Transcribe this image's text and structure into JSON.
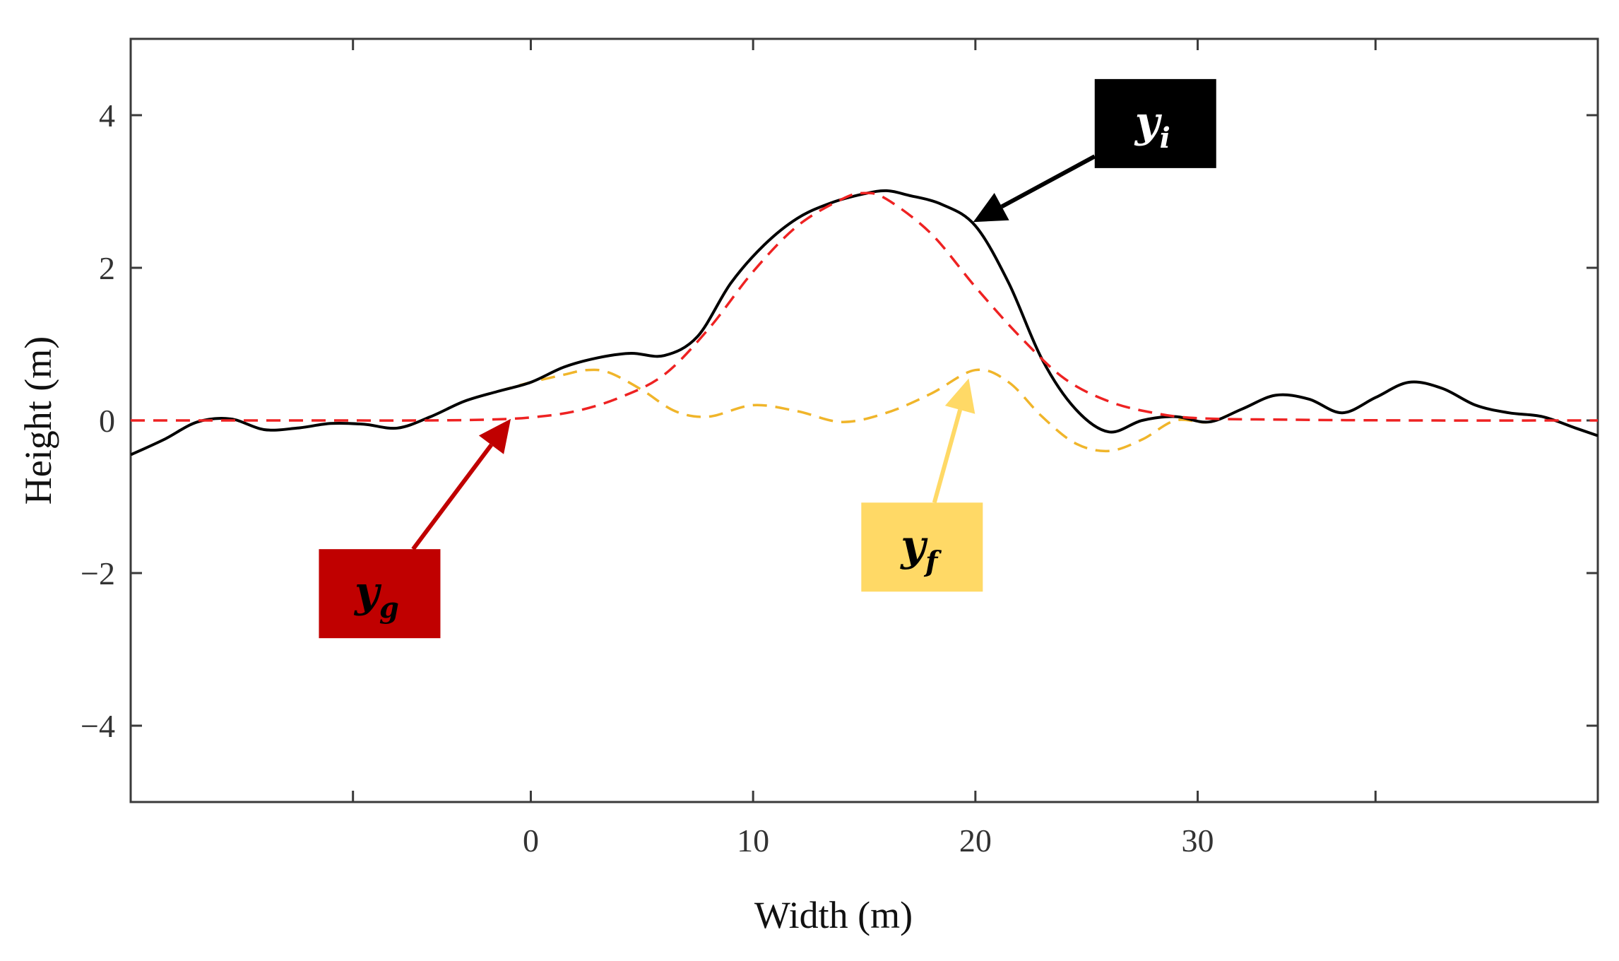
{
  "chart_data": {
    "type": "line",
    "title": "",
    "xlabel": "Width (m)",
    "ylabel": "Height (m)",
    "xlim": [
      -18,
      48
    ],
    "ylim": [
      -5,
      5
    ],
    "xticks": [
      -8,
      0,
      10,
      20,
      30,
      38
    ],
    "xtick_labels": [
      "",
      "0",
      "10",
      "20",
      "30",
      ""
    ],
    "yticks": [
      -4,
      -2,
      0,
      2,
      4
    ],
    "ytick_labels": [
      "−4",
      "−2",
      "0",
      "2",
      "4"
    ],
    "grid": false,
    "series": [
      {
        "name": "y_i",
        "label_main": "y",
        "label_sub": "i",
        "style": "solid",
        "color": "#000000",
        "x": [
          -18,
          -16.5,
          -15,
          -13.5,
          -12,
          -10.5,
          -9,
          -7.5,
          -6,
          -4.5,
          -3,
          -1.5,
          0,
          1.5,
          3,
          4.5,
          6,
          7.5,
          9,
          10.5,
          12,
          13.5,
          15,
          16,
          17,
          18.5,
          20,
          21.5,
          23,
          24.5,
          26,
          27.5,
          29,
          30.5,
          32,
          33.5,
          35,
          36.5,
          38,
          39.5,
          41,
          42.5,
          44,
          45.5,
          47,
          48
        ],
        "y": [
          -0.45,
          -0.25,
          -0.02,
          0.02,
          -0.12,
          -0.1,
          -0.04,
          -0.05,
          -0.1,
          0.05,
          0.25,
          0.38,
          0.5,
          0.7,
          0.82,
          0.88,
          0.85,
          1.1,
          1.8,
          2.3,
          2.65,
          2.85,
          2.97,
          3.01,
          2.95,
          2.83,
          2.55,
          1.8,
          0.8,
          0.15,
          -0.15,
          0.0,
          0.05,
          -0.02,
          0.15,
          0.33,
          0.28,
          0.1,
          0.3,
          0.5,
          0.42,
          0.2,
          0.1,
          0.05,
          -0.1,
          -0.2
        ]
      },
      {
        "name": "y_g",
        "label_main": "y",
        "label_sub": "g",
        "style": "dashed",
        "color": "#ee2222",
        "x": [
          -18,
          -10,
          -5,
          -2,
          0,
          2,
          4,
          6,
          8,
          10,
          12,
          14,
          15,
          16,
          18,
          20,
          22,
          24,
          26,
          28,
          30,
          34,
          40,
          48
        ],
        "y": [
          0,
          0,
          0,
          0.01,
          0.04,
          0.12,
          0.3,
          0.6,
          1.2,
          1.95,
          2.55,
          2.9,
          2.98,
          2.9,
          2.45,
          1.75,
          1.1,
          0.55,
          0.25,
          0.1,
          0.03,
          0.01,
          0,
          0
        ]
      },
      {
        "name": "y_f",
        "label_main": "y",
        "label_sub": "f",
        "style": "dashed",
        "color": "#f0b52a",
        "x": [
          -18,
          -16.5,
          -15,
          -13.5,
          -12,
          -10.5,
          -9,
          -7.5,
          -6,
          -4.5,
          -3,
          -1.5,
          0,
          1.5,
          2.5,
          3.5,
          5,
          6.5,
          8,
          10,
          12,
          14,
          16,
          18,
          20,
          21.5,
          23,
          24.5,
          26,
          27.5,
          29,
          30.5,
          32,
          33.5,
          35,
          36.5,
          38,
          39.5,
          41,
          42.5,
          44,
          45.5,
          47,
          48
        ],
        "y": [
          -0.45,
          -0.25,
          -0.02,
          0.02,
          -0.12,
          -0.1,
          -0.04,
          -0.05,
          -0.1,
          0.05,
          0.25,
          0.38,
          0.5,
          0.6,
          0.66,
          0.63,
          0.4,
          0.12,
          0.05,
          0.2,
          0.12,
          -0.02,
          0.1,
          0.35,
          0.66,
          0.5,
          0.05,
          -0.3,
          -0.4,
          -0.25,
          0.0,
          -0.02,
          0.15,
          0.33,
          0.28,
          0.1,
          0.3,
          0.5,
          0.42,
          0.2,
          0.1,
          0.05,
          -0.1,
          -0.2
        ]
      }
    ],
    "annotations": [
      {
        "series": "y_i",
        "box_color": "#000000",
        "text_color": "#ffffff",
        "box_x": 28.1,
        "box_y": 3.89,
        "arrow_to_x": 19.9,
        "arrow_to_y": 2.6
      },
      {
        "series": "y_g",
        "box_color": "#c00000",
        "text_color": "#000000",
        "box_x": -6.8,
        "box_y": -2.27,
        "arrow_to_x": -0.9,
        "arrow_to_y": 0.02
      },
      {
        "series": "y_f",
        "box_color": "#ffd966",
        "text_color": "#000000",
        "box_x": 17.6,
        "box_y": -1.66,
        "arrow_to_x": 19.7,
        "arrow_to_y": 0.55
      }
    ]
  }
}
